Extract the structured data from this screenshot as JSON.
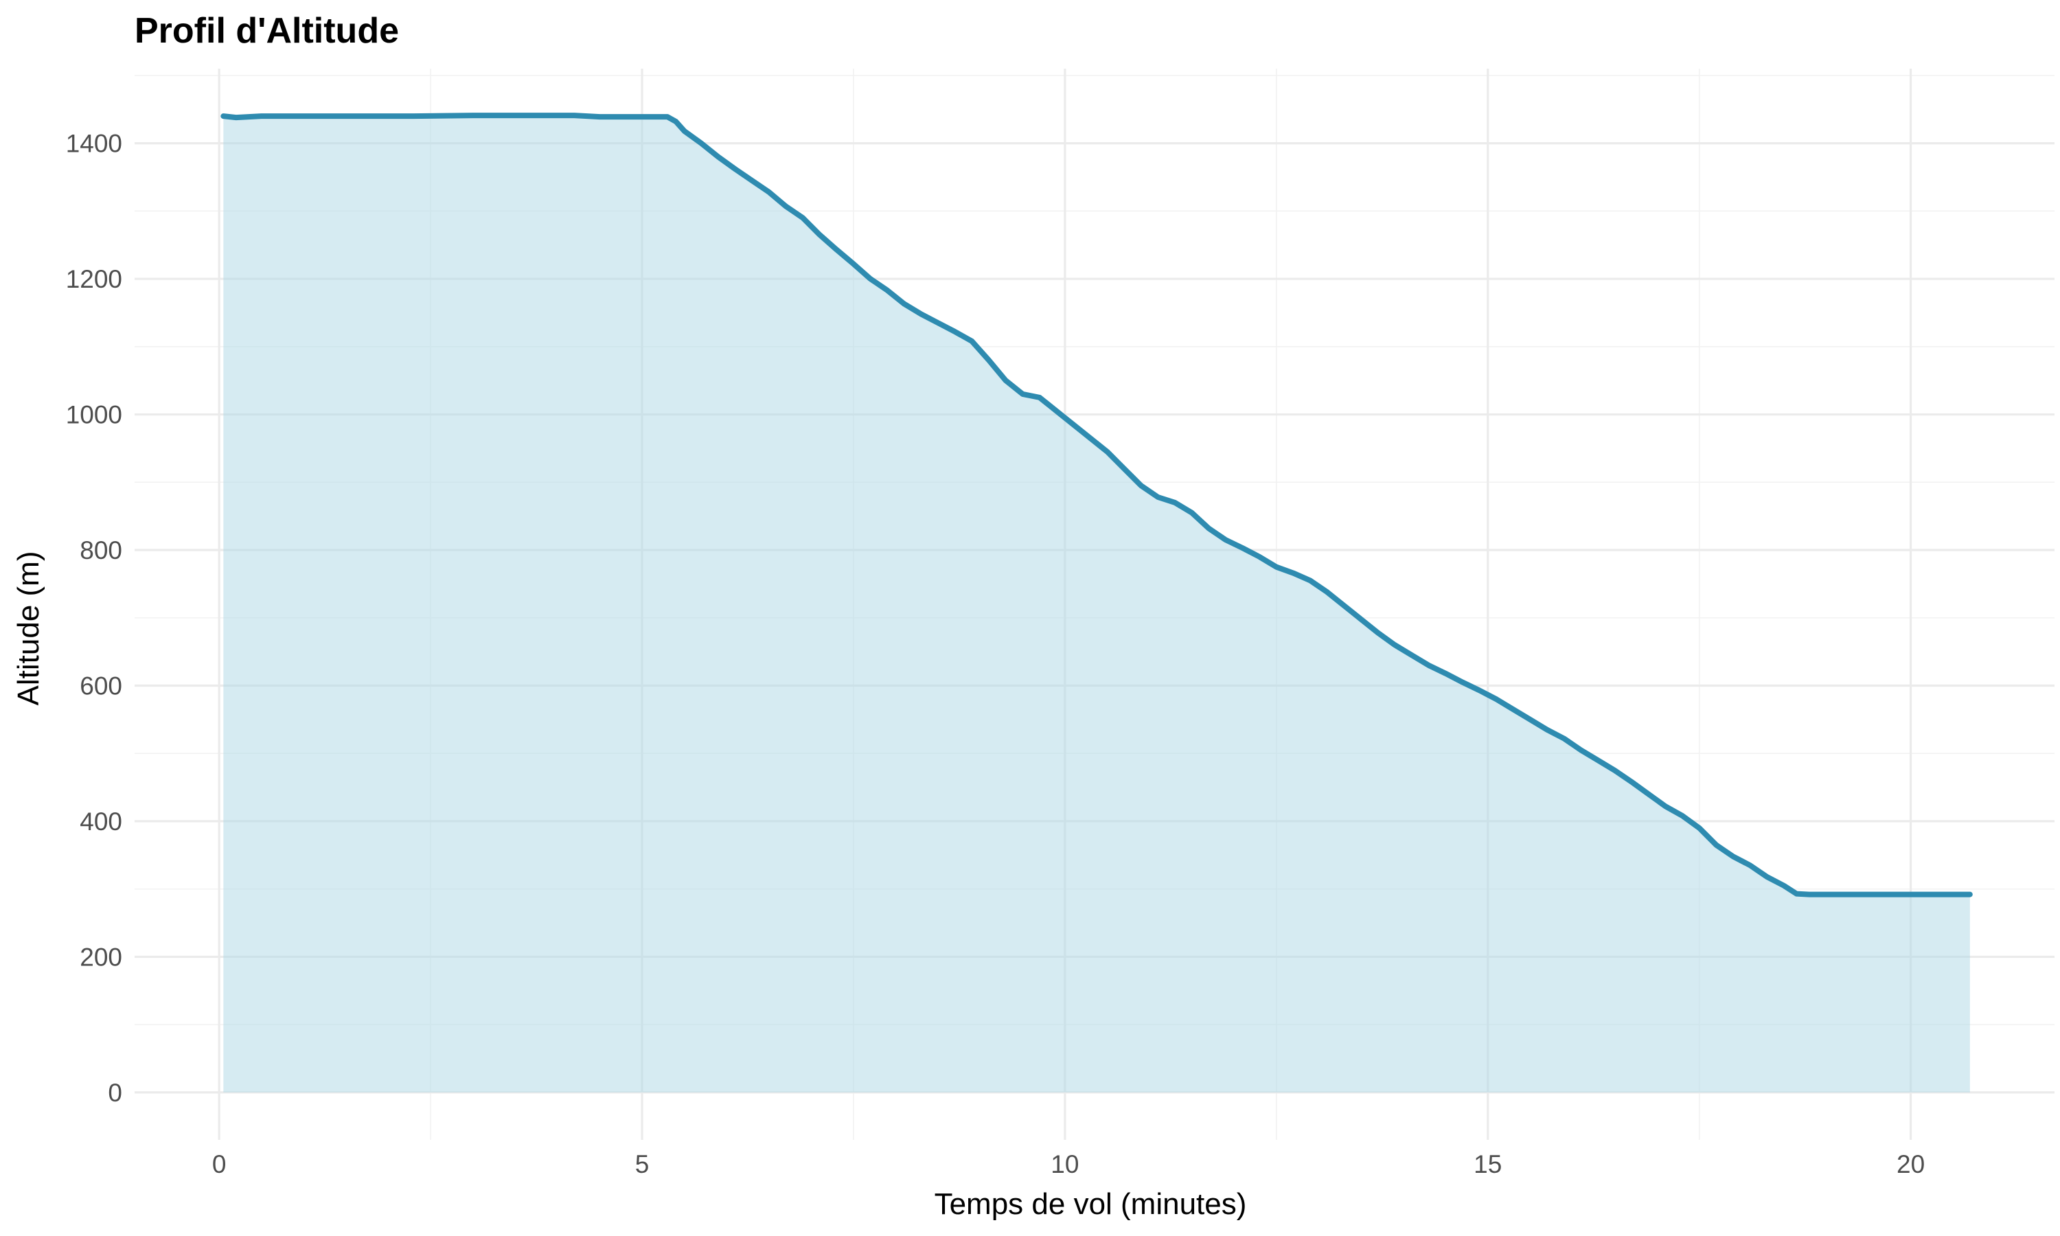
{
  "chart_data": {
    "type": "area",
    "title": "Profil d'Altitude",
    "xlabel": "Temps de vol (minutes)",
    "ylabel": "Altitude (m)",
    "xlim": [
      -1.0,
      21.7
    ],
    "ylim": [
      -70,
      1510
    ],
    "x_ticks": [
      0,
      5,
      10,
      15,
      20
    ],
    "x_tick_labels": [
      "0",
      "5",
      "10",
      "15",
      "20"
    ],
    "y_ticks": [
      0,
      200,
      400,
      600,
      800,
      1000,
      1200,
      1400
    ],
    "y_tick_labels": [
      "0",
      "200",
      "400",
      "600",
      "800",
      "1000",
      "1200",
      "1400"
    ],
    "grid": true,
    "legend": "none",
    "colors": {
      "line": "#2e8bb0",
      "fill": "#add8e6",
      "fill_opacity": 0.5
    },
    "series": [
      {
        "x": [
          0.05,
          0.2,
          0.5,
          1.0,
          2.0,
          2.3,
          3.0,
          4.2,
          4.5,
          5.0,
          5.3,
          5.4,
          5.5,
          5.7,
          5.9,
          6.1,
          6.3,
          6.5,
          6.7,
          6.9,
          7.1,
          7.3,
          7.5,
          7.7,
          7.9,
          8.1,
          8.3,
          8.5,
          8.7,
          8.9,
          9.1,
          9.3,
          9.5,
          9.7,
          9.9,
          10.1,
          10.3,
          10.5,
          10.7,
          10.9,
          11.1,
          11.3,
          11.5,
          11.7,
          11.9,
          12.1,
          12.3,
          12.5,
          12.7,
          12.9,
          13.1,
          13.3,
          13.5,
          13.7,
          13.9,
          14.1,
          14.3,
          14.5,
          14.7,
          14.9,
          15.1,
          15.3,
          15.5,
          15.7,
          15.9,
          16.1,
          16.3,
          16.5,
          16.7,
          16.9,
          17.1,
          17.3,
          17.5,
          17.7,
          17.9,
          18.1,
          18.3,
          18.5,
          18.65,
          18.8,
          19.0,
          19.5,
          20.0,
          20.5,
          20.7
        ],
        "y": [
          1440,
          1438,
          1440,
          1440,
          1440,
          1440,
          1441,
          1441,
          1439,
          1439,
          1439,
          1432,
          1418,
          1400,
          1380,
          1362,
          1345,
          1328,
          1307,
          1290,
          1265,
          1243,
          1222,
          1200,
          1183,
          1163,
          1148,
          1135,
          1122,
          1108,
          1080,
          1050,
          1030,
          1025,
          1005,
          985,
          965,
          945,
          920,
          895,
          878,
          870,
          855,
          832,
          815,
          803,
          790,
          775,
          766,
          755,
          738,
          718,
          698,
          678,
          660,
          645,
          630,
          618,
          605,
          593,
          580,
          565,
          550,
          535,
          522,
          505,
          490,
          475,
          458,
          440,
          422,
          408,
          390,
          365,
          348,
          335,
          318,
          305,
          293,
          292,
          292,
          292,
          292,
          292,
          292
        ]
      }
    ]
  }
}
